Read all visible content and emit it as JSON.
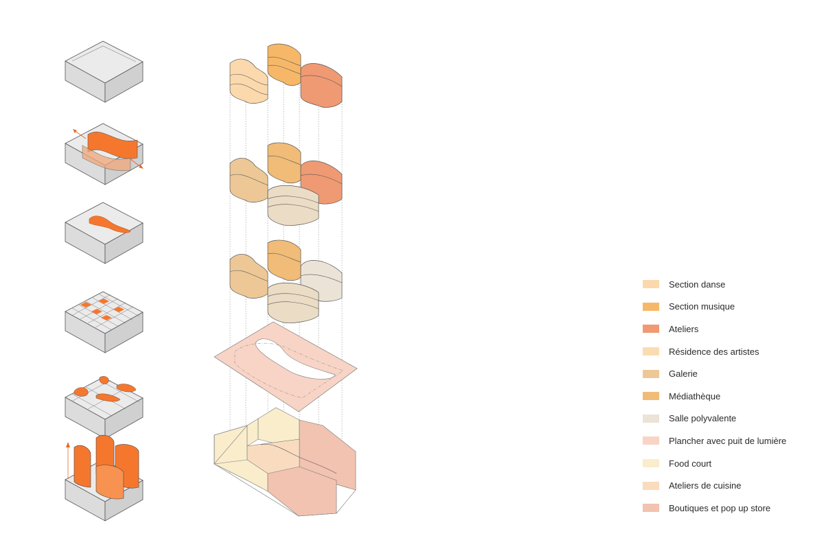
{
  "legend": {
    "items": [
      {
        "label": "Section danse",
        "color": "#fbd9ad"
      },
      {
        "label": "Section musique",
        "color": "#f6b868"
      },
      {
        "label": "Ateliers",
        "color": "#ef9a73"
      },
      {
        "label": "Résidence des artistes",
        "color": "#fbdcb2"
      },
      {
        "label": "Galerie",
        "color": "#edc896"
      },
      {
        "label": "Médiathèque",
        "color": "#f0bc78"
      },
      {
        "label": "Salle polyvalente",
        "color": "#ece3d7"
      },
      {
        "label": "Plancher avec puit de lumière",
        "color": "#f8d4c6"
      },
      {
        "label": "Food court",
        "color": "#f9edcc"
      },
      {
        "label": "Ateliers de cuisine",
        "color": "#f9dcbf"
      },
      {
        "label": "Boutiques et pop up store",
        "color": "#f1c3b0"
      }
    ]
  },
  "colors": {
    "accent_orange": "#f5772e",
    "massing_grey": "#e6e6e6",
    "outline": "#555555"
  }
}
